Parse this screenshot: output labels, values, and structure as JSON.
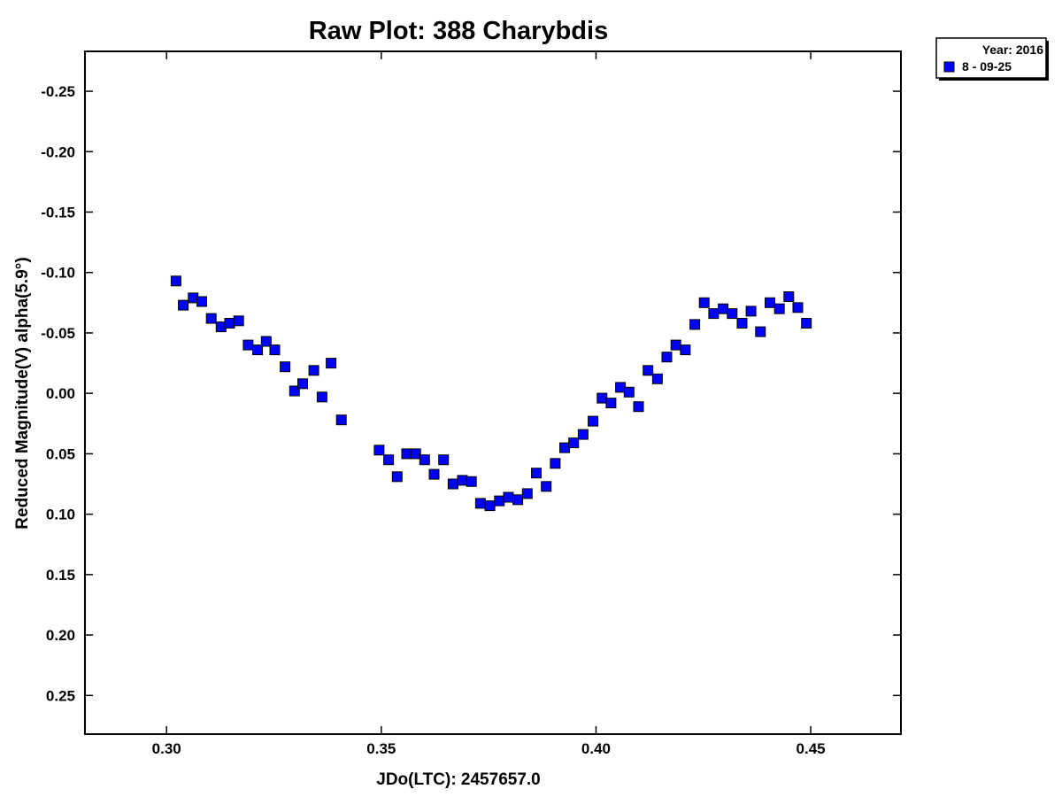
{
  "chart_data": {
    "type": "scatter",
    "title": "Raw Plot: 388 Charybdis",
    "xlabel": "JDo(LTC): 2457657.0",
    "ylabel": "Reduced Magnitude(V) alpha(5.9°)",
    "xlim": [
      0.281,
      0.471
    ],
    "ylim": [
      -0.283,
      0.282
    ],
    "y_inverted": true,
    "grid": false,
    "legend_position": "top-right, outside plot",
    "x_ticks": [
      "0.30",
      "0.35",
      "0.40",
      "0.45"
    ],
    "y_ticks": [
      "-0.25",
      "-0.20",
      "-0.15",
      "-0.10",
      "-0.05",
      "0.00",
      "0.05",
      "0.10",
      "0.15",
      "0.20",
      "0.25"
    ],
    "legend": {
      "header": "Year: 2016",
      "entries": [
        "8 - 09-25"
      ]
    },
    "series": [
      {
        "name": "8 - 09-25",
        "color": "#0000ff",
        "marker": "square",
        "points": [
          [
            0.3022,
            -0.093
          ],
          [
            0.3039,
            -0.073
          ],
          [
            0.3062,
            -0.079
          ],
          [
            0.3082,
            -0.076
          ],
          [
            0.3104,
            -0.062
          ],
          [
            0.3127,
            -0.055
          ],
          [
            0.3147,
            -0.058
          ],
          [
            0.3168,
            -0.06
          ],
          [
            0.319,
            -0.04
          ],
          [
            0.3212,
            -0.036
          ],
          [
            0.3232,
            -0.043
          ],
          [
            0.3252,
            -0.036
          ],
          [
            0.3276,
            -0.022
          ],
          [
            0.3298,
            -0.002
          ],
          [
            0.3317,
            -0.008
          ],
          [
            0.3343,
            -0.019
          ],
          [
            0.3362,
            0.003
          ],
          [
            0.3383,
            -0.025
          ],
          [
            0.3407,
            0.022
          ],
          [
            0.3495,
            0.047
          ],
          [
            0.3517,
            0.055
          ],
          [
            0.3537,
            0.069
          ],
          [
            0.3559,
            0.05
          ],
          [
            0.358,
            0.05
          ],
          [
            0.3601,
            0.055
          ],
          [
            0.3623,
            0.067
          ],
          [
            0.3645,
            0.055
          ],
          [
            0.3667,
            0.075
          ],
          [
            0.3689,
            0.072
          ],
          [
            0.371,
            0.073
          ],
          [
            0.3731,
            0.091
          ],
          [
            0.3753,
            0.093
          ],
          [
            0.3775,
            0.089
          ],
          [
            0.3796,
            0.086
          ],
          [
            0.3818,
            0.088
          ],
          [
            0.384,
            0.083
          ],
          [
            0.3861,
            0.066
          ],
          [
            0.3884,
            0.077
          ],
          [
            0.3905,
            0.058
          ],
          [
            0.3927,
            0.045
          ],
          [
            0.3948,
            0.041
          ],
          [
            0.397,
            0.034
          ],
          [
            0.3993,
            0.023
          ],
          [
            0.4014,
            0.004
          ],
          [
            0.4035,
            0.008
          ],
          [
            0.4057,
            -0.005
          ],
          [
            0.4077,
            -0.001
          ],
          [
            0.4099,
            0.011
          ],
          [
            0.4121,
            -0.019
          ],
          [
            0.4143,
            -0.012
          ],
          [
            0.4165,
            -0.03
          ],
          [
            0.4186,
            -0.04
          ],
          [
            0.4208,
            -0.036
          ],
          [
            0.423,
            -0.057
          ],
          [
            0.4252,
            -0.075
          ],
          [
            0.4274,
            -0.066
          ],
          [
            0.4296,
            -0.07
          ],
          [
            0.4317,
            -0.066
          ],
          [
            0.434,
            -0.058
          ],
          [
            0.4361,
            -0.068
          ],
          [
            0.4383,
            -0.051
          ],
          [
            0.4405,
            -0.075
          ],
          [
            0.4427,
            -0.07
          ],
          [
            0.4449,
            -0.08
          ],
          [
            0.447,
            -0.071
          ],
          [
            0.449,
            -0.058
          ]
        ]
      }
    ]
  }
}
